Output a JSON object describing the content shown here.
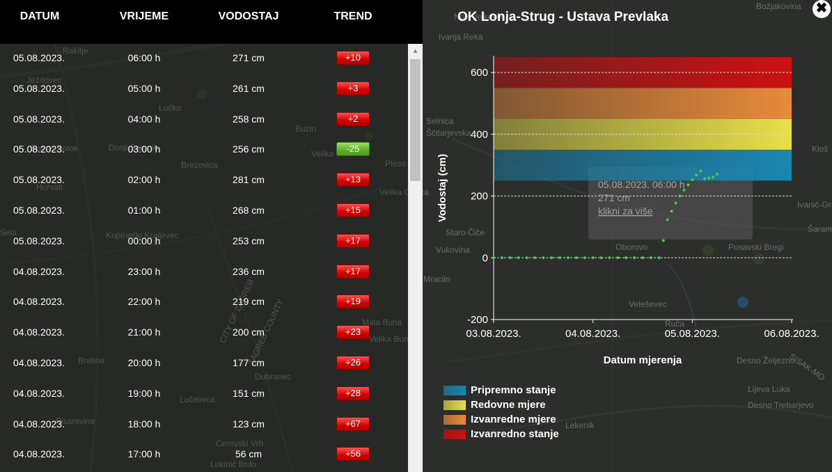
{
  "map": {
    "places": [
      "Novi Jelkovec",
      "Ivanja Reka",
      "Rakitje",
      "Ježdovec",
      "Lučko",
      "Buzin",
      "Selnica",
      "Ščitarjevska",
      "Rakov Potok",
      "Donji Stupnik",
      "Brezovica",
      "Velika",
      "Pleso",
      "Horvati",
      "Velika Gorica",
      "Sela",
      "Kupinečki Kraljevec",
      "Staro Čiče",
      "Vukovina",
      "Oborovo",
      "Posavski Bregi",
      "Mraclin",
      "Veleševec",
      "Ruča",
      "Mala Buna",
      "Velika Buna",
      "Bratina",
      "Dubranec",
      "Lučelnica",
      "Pisarovina",
      "Cerovski Vrh",
      "Lukinić Brdo",
      "Lekenik",
      "Desno Željezno",
      "Lijeva Luka",
      "Desno Trebarjevo",
      "Božjakovina",
      "Kloš",
      "Ivanić-Grad",
      "Šarampov",
      "CITY OF ZAGREB",
      "ZAGREB COUNTY",
      "SISAK-MO"
    ]
  },
  "table": {
    "headers": {
      "datum": "DATUM",
      "vrijeme": "VRIJEME",
      "vodostaj": "VODOSTAJ",
      "trend": "TREND"
    },
    "rows": [
      {
        "datum": "05.08.2023.",
        "vrijeme": "06:00 h",
        "vodostaj": "271 cm",
        "trend": "+10",
        "trend_color": "red"
      },
      {
        "datum": "05.08.2023.",
        "vrijeme": "05:00 h",
        "vodostaj": "261 cm",
        "trend": "+3",
        "trend_color": "red"
      },
      {
        "datum": "05.08.2023.",
        "vrijeme": "04:00 h",
        "vodostaj": "258 cm",
        "trend": "+2",
        "trend_color": "red"
      },
      {
        "datum": "05.08.2023.",
        "vrijeme": "03:00 h",
        "vodostaj": "256 cm",
        "trend": "-25",
        "trend_color": "green"
      },
      {
        "datum": "05.08.2023.",
        "vrijeme": "02:00 h",
        "vodostaj": "281 cm",
        "trend": "+13",
        "trend_color": "red"
      },
      {
        "datum": "05.08.2023.",
        "vrijeme": "01:00 h",
        "vodostaj": "268 cm",
        "trend": "+15",
        "trend_color": "red"
      },
      {
        "datum": "05.08.2023.",
        "vrijeme": "00:00 h",
        "vodostaj": "253 cm",
        "trend": "+17",
        "trend_color": "red"
      },
      {
        "datum": "04.08.2023.",
        "vrijeme": "23:00 h",
        "vodostaj": "236 cm",
        "trend": "+17",
        "trend_color": "red"
      },
      {
        "datum": "04.08.2023.",
        "vrijeme": "22:00 h",
        "vodostaj": "219 cm",
        "trend": "+19",
        "trend_color": "red"
      },
      {
        "datum": "04.08.2023.",
        "vrijeme": "21:00 h",
        "vodostaj": "200 cm",
        "trend": "+23",
        "trend_color": "red"
      },
      {
        "datum": "04.08.2023.",
        "vrijeme": "20:00 h",
        "vodostaj": "177 cm",
        "trend": "+26",
        "trend_color": "red"
      },
      {
        "datum": "04.08.2023.",
        "vrijeme": "19:00 h",
        "vodostaj": "151 cm",
        "trend": "+28",
        "trend_color": "red"
      },
      {
        "datum": "04.08.2023.",
        "vrijeme": "18:00 h",
        "vodostaj": "123 cm",
        "trend": "+67",
        "trend_color": "red"
      },
      {
        "datum": "04.08.2023.",
        "vrijeme": "17:00 h",
        "vodostaj": "56 cm",
        "trend": "+56",
        "trend_color": "red"
      }
    ]
  },
  "chart_panel": {
    "title": "OK Lonja-Strug - Ustava Prevlaka",
    "close_icon": "close-icon",
    "tooltip": {
      "line1": "05.08.2023. 06:00 h",
      "line2": "271 cm",
      "link": "klikni za više"
    }
  },
  "chart_data": {
    "type": "scatter",
    "title": "",
    "xlabel": "Datum mjerenja",
    "ylabel": "Vodostaj (cm)",
    "xlim": [
      "03.08.2023.",
      "06.08.2023."
    ],
    "ylim": [
      -200,
      650
    ],
    "x_ticks": [
      "03.08.2023.",
      "04.08.2023.",
      "05.08.2023.",
      "06.08.2023."
    ],
    "y_ticks": [
      -200,
      0,
      200,
      400,
      600
    ],
    "grid": "horizontal dashed",
    "series": [
      {
        "color": "#3fd13f",
        "points": [
          [
            "03.08.2023. 00:00",
            0
          ],
          [
            "03.08.2023. 02:00",
            0
          ],
          [
            "03.08.2023. 04:00",
            0
          ],
          [
            "03.08.2023. 06:00",
            0
          ],
          [
            "03.08.2023. 08:00",
            0
          ],
          [
            "03.08.2023. 10:00",
            0
          ],
          [
            "03.08.2023. 12:00",
            0
          ],
          [
            "03.08.2023. 14:00",
            0
          ],
          [
            "03.08.2023. 16:00",
            0
          ],
          [
            "03.08.2023. 18:00",
            0
          ],
          [
            "03.08.2023. 20:00",
            0
          ],
          [
            "03.08.2023. 22:00",
            0
          ],
          [
            "04.08.2023. 00:00",
            0
          ],
          [
            "04.08.2023. 02:00",
            0
          ],
          [
            "04.08.2023. 04:00",
            0
          ],
          [
            "04.08.2023. 06:00",
            0
          ],
          [
            "04.08.2023. 08:00",
            0
          ],
          [
            "04.08.2023. 10:00",
            0
          ],
          [
            "04.08.2023. 12:00",
            0
          ],
          [
            "04.08.2023. 14:00",
            0
          ],
          [
            "04.08.2023. 16:00",
            0
          ],
          [
            "04.08.2023. 17:00",
            56
          ],
          [
            "04.08.2023. 18:00",
            123
          ],
          [
            "04.08.2023. 19:00",
            151
          ],
          [
            "04.08.2023. 20:00",
            177
          ],
          [
            "04.08.2023. 21:00",
            200
          ],
          [
            "04.08.2023. 22:00",
            219
          ],
          [
            "04.08.2023. 23:00",
            236
          ],
          [
            "05.08.2023. 00:00",
            253
          ],
          [
            "05.08.2023. 01:00",
            268
          ],
          [
            "05.08.2023. 02:00",
            281
          ],
          [
            "05.08.2023. 03:00",
            256
          ],
          [
            "05.08.2023. 04:00",
            258
          ],
          [
            "05.08.2023. 05:00",
            261
          ],
          [
            "05.08.2023. 06:00",
            271
          ]
        ]
      }
    ],
    "bands": [
      {
        "name": "Pripremno stanje",
        "from": 250,
        "to": 350,
        "color": "#1a86b0"
      },
      {
        "name": "Redovne mjere",
        "from": 350,
        "to": 450,
        "color": "#e8e04a"
      },
      {
        "name": "Izvanredne mjere",
        "from": 450,
        "to": 550,
        "color": "#e88a3a"
      },
      {
        "name": "Izvanredno stanje",
        "from": 550,
        "to": 650,
        "color": "#cc1010"
      }
    ],
    "legend_position": "bottom-left"
  }
}
